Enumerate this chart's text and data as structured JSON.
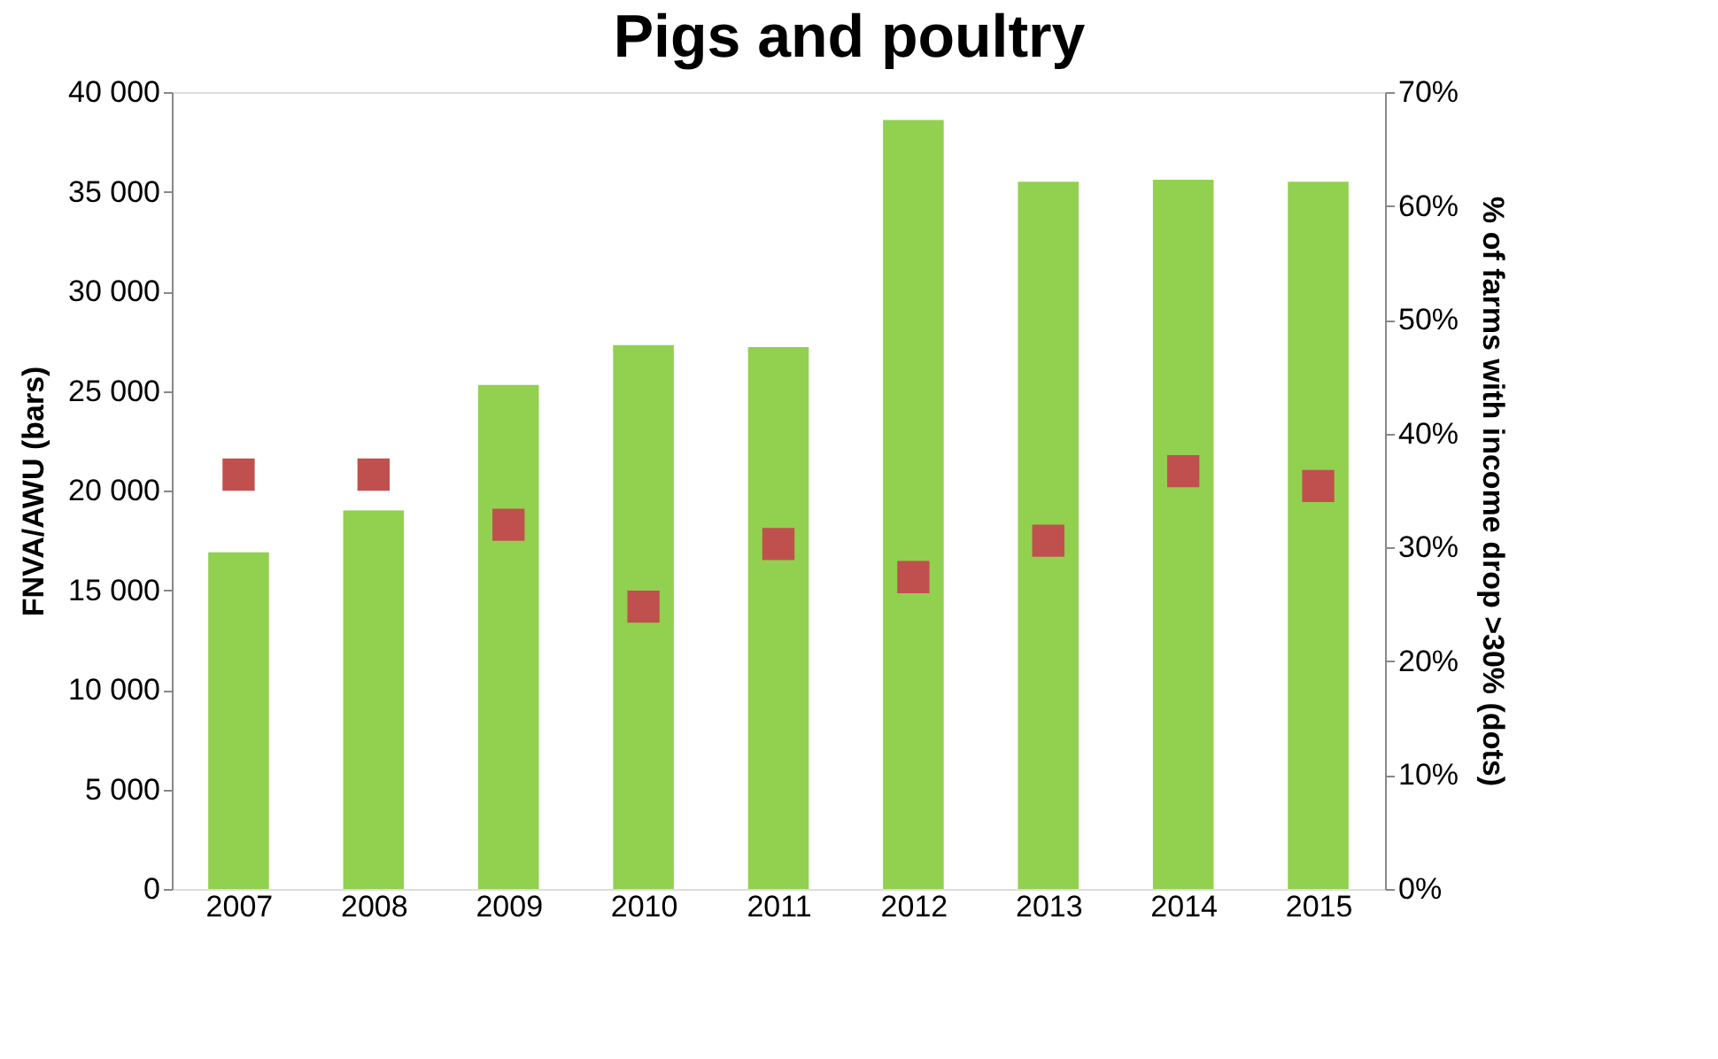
{
  "chart_data": {
    "type": "bar",
    "title": "Pigs and poultry",
    "ylabel": "FNVA/AWU (bars)",
    "y2label": "% of farms with income drop >30% (dots)",
    "categories": [
      "2007",
      "2008",
      "2009",
      "2010",
      "2011",
      "2012",
      "2013",
      "2014",
      "2015"
    ],
    "series": [
      {
        "color": "#92d050",
        "values": [
          16900,
          19000,
          25300,
          27300,
          27200,
          38600,
          35500,
          35600,
          35500
        ]
      },
      {
        "type": "scatter",
        "axis": "y2",
        "color": "#c0504d",
        "marker": "square",
        "values": [
          36.4,
          36.4,
          32.0,
          24.8,
          30.3,
          27.4,
          30.6,
          36.7,
          35.4
        ]
      }
    ],
    "ylim": [
      0,
      40000
    ],
    "yticks": [
      0,
      {
        "value": 5000,
        "label": "5 000"
      },
      {
        "value": 10000,
        "label": "10 000"
      },
      {
        "value": 15000,
        "label": "15 000"
      },
      {
        "value": 20000,
        "label": "20 000"
      },
      {
        "value": 25000,
        "label": "25 000"
      },
      {
        "value": 30000,
        "label": "30 000"
      },
      {
        "value": 35000,
        "label": "35 000"
      },
      {
        "value": 40000,
        "label": "40 000"
      }
    ],
    "y2lim": [
      0,
      70
    ],
    "y2ticks": [
      {
        "value": 0,
        "label": "0%"
      },
      {
        "value": 10,
        "label": "10%"
      },
      {
        "value": 20,
        "label": "20%"
      },
      {
        "value": 30,
        "label": "30%"
      },
      {
        "value": 40,
        "label": "40%"
      },
      {
        "value": 50,
        "label": "50%"
      },
      {
        "value": 60,
        "label": "60%"
      },
      {
        "value": 70,
        "label": "70%"
      }
    ],
    "grid": false
  }
}
